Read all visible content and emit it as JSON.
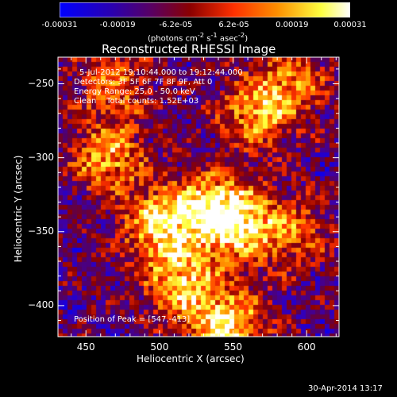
{
  "chart_data": {
    "type": "heatmap",
    "title": "Reconstructed RHESSI Image",
    "xlabel": "Heliocentric X (arcsec)",
    "ylabel": "Heliocentric Y (arcsec)",
    "xlim": [
      431,
      622
    ],
    "ylim": [
      -421,
      -232
    ],
    "xticks": [
      450,
      500,
      550,
      600
    ],
    "yticks": [
      -250,
      -300,
      -350,
      -400
    ],
    "colorbar": {
      "ticks": [
        "-0.00031",
        "-0.00019",
        "-6.2e-05",
        "6.2e-05",
        "0.00019",
        "0.00031"
      ],
      "range": [
        -0.00031,
        0.00031
      ],
      "unit_label": "(photons cm-2 s-1 asec-2)",
      "colormap": [
        "#0000ff",
        "#4b0082",
        "#8b0000",
        "#ff4500",
        "#ffa500",
        "#ffff00",
        "#ffffff"
      ]
    },
    "annotations": {
      "time_range": "5-Jul-2012 19:10:44.000 to 19:12:44.000",
      "detectors": "Detectors: 3F 5F 6F 7F 8F 9F, Att 0",
      "energy": "Energy Range: 25.0 - 50.0 keV",
      "clean": "Clean    Total counts: 1.52E+03",
      "peak": "Position of Peak = [547,-413]"
    },
    "peak_position": [
      547,
      -413
    ],
    "hot_regions": [
      {
        "x": 500,
        "y": -345,
        "intensity": 0.95
      },
      {
        "x": 535,
        "y": -335,
        "intensity": 0.9
      },
      {
        "x": 465,
        "y": -300,
        "intensity": 0.8
      },
      {
        "x": 515,
        "y": -385,
        "intensity": 0.85
      },
      {
        "x": 565,
        "y": -270,
        "intensity": 0.75
      },
      {
        "x": 555,
        "y": -345,
        "intensity": 0.8
      },
      {
        "x": 590,
        "y": -350,
        "intensity": 0.55
      },
      {
        "x": 547,
        "y": -413,
        "intensity": 1.0
      },
      {
        "x": 470,
        "y": -250,
        "intensity": 0.6
      },
      {
        "x": 590,
        "y": -250,
        "intensity": 0.6
      }
    ]
  },
  "footer": {
    "timestamp": "30-Apr-2014 13:17"
  }
}
